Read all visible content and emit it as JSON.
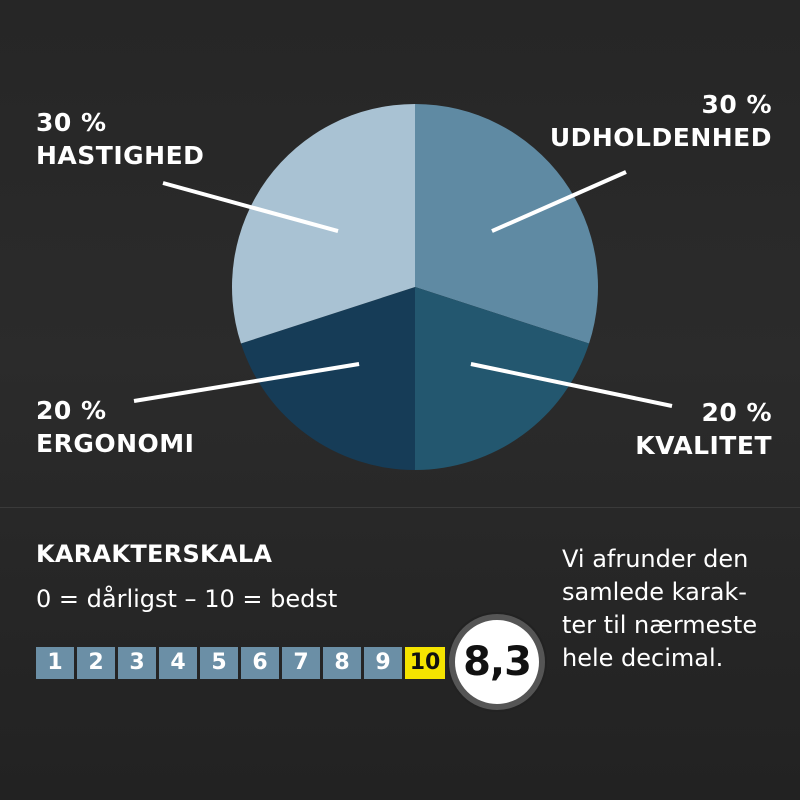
{
  "chart_data": {
    "type": "pie",
    "slices": [
      {
        "category": "UDHOLDENHED",
        "percent_label": "30 %",
        "value": 30,
        "color": "#5f8aa3"
      },
      {
        "category": "KVALITET",
        "percent_label": "20 %",
        "value": 20,
        "color": "#23576f"
      },
      {
        "category": "ERGONOMI",
        "percent_label": "20 %",
        "value": 20,
        "color": "#163c57"
      },
      {
        "category": "HASTIGHED",
        "percent_label": "30 %",
        "value": 30,
        "color": "#a9c2d3"
      }
    ]
  },
  "scale": {
    "title": "KARAKTERSKALA",
    "subtitle": "0 = dårligst – 10 = bedst",
    "cells": [
      "1",
      "2",
      "3",
      "4",
      "5",
      "6",
      "7",
      "8",
      "9",
      "10"
    ],
    "active_cell": "10",
    "score": "8,3"
  },
  "note": {
    "lines": [
      "Vi afrunder den",
      "samlede karak-",
      "ter til nærmeste",
      "hele decimal."
    ]
  },
  "colors": {
    "scale_cell": "#6b8fa6",
    "scale_active": "#f5e400",
    "leader_line": "#ffffff"
  }
}
